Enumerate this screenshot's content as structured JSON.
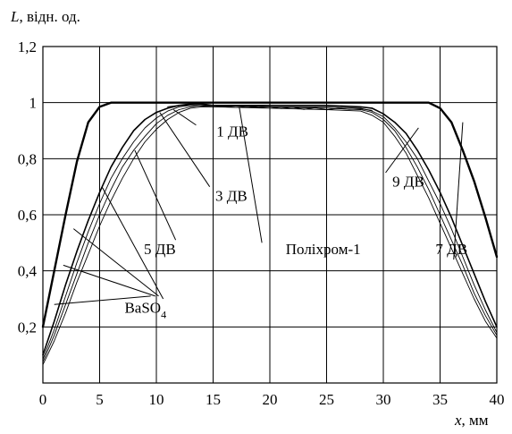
{
  "chart_data": {
    "type": "line",
    "ylabel_var": "L",
    "ylabel_rest": ", відн. од.",
    "xlabel_var": "x",
    "xlabel_rest": ", мм",
    "xlim": [
      0,
      40
    ],
    "ylim": [
      0,
      1.2
    ],
    "xticks": [
      0,
      5,
      10,
      15,
      20,
      25,
      30,
      35,
      40
    ],
    "xtick_labels": [
      "0",
      "5",
      "10",
      "15",
      "20",
      "25",
      "30",
      "35",
      "40"
    ],
    "yticks": [
      0.2,
      0.4,
      0.6,
      0.8,
      1,
      1.2
    ],
    "ytick_labels": [
      "0,2",
      "0,4",
      "0,6",
      "0,8",
      "1",
      "1,2"
    ],
    "grid": true,
    "series": [
      {
        "style": "thick",
        "x": [
          0,
          1,
          2,
          3,
          4,
          5,
          6,
          7,
          10,
          15,
          20,
          25,
          30,
          33,
          34,
          35,
          36,
          37,
          38,
          39,
          40
        ],
        "y": [
          0.2,
          0.4,
          0.6,
          0.79,
          0.93,
          0.985,
          1.0,
          1.0,
          1.0,
          1.0,
          1.0,
          1.0,
          1.0,
          1.0,
          1.0,
          0.98,
          0.93,
          0.83,
          0.72,
          0.59,
          0.45
        ]
      },
      {
        "style": "medium",
        "x": [
          0,
          1,
          2,
          3,
          4,
          5,
          6,
          7,
          8,
          9,
          10,
          11,
          12,
          13,
          14,
          15,
          20,
          25,
          28,
          29,
          30,
          31,
          32,
          33,
          34,
          35,
          36,
          37,
          38,
          39,
          40
        ],
        "y": [
          0.1,
          0.22,
          0.35,
          0.47,
          0.58,
          0.68,
          0.77,
          0.84,
          0.9,
          0.94,
          0.965,
          0.98,
          0.99,
          0.995,
          0.995,
          0.99,
          0.99,
          0.99,
          0.985,
          0.98,
          0.96,
          0.93,
          0.89,
          0.83,
          0.76,
          0.68,
          0.59,
          0.49,
          0.39,
          0.29,
          0.2
        ]
      },
      {
        "style": "thin",
        "x": [
          0,
          1,
          2,
          3,
          4,
          5,
          6,
          7,
          8,
          9,
          10,
          11,
          12,
          13,
          14,
          15,
          20,
          25,
          28,
          29,
          30,
          31,
          32,
          33,
          34,
          35,
          36,
          37,
          38,
          39,
          40
        ],
        "y": [
          0.085,
          0.19,
          0.31,
          0.43,
          0.54,
          0.64,
          0.73,
          0.8,
          0.86,
          0.91,
          0.945,
          0.97,
          0.985,
          0.99,
          0.99,
          0.99,
          0.985,
          0.985,
          0.98,
          0.97,
          0.95,
          0.91,
          0.86,
          0.8,
          0.72,
          0.64,
          0.55,
          0.45,
          0.35,
          0.26,
          0.18
        ]
      },
      {
        "style": "thin",
        "x": [
          0,
          1,
          2,
          3,
          4,
          5,
          6,
          7,
          8,
          9,
          10,
          11,
          12,
          13,
          14,
          15,
          20,
          25,
          28,
          29,
          30,
          31,
          32,
          33,
          34,
          35,
          36,
          37,
          38,
          39,
          40
        ],
        "y": [
          0.075,
          0.17,
          0.28,
          0.39,
          0.5,
          0.6,
          0.69,
          0.77,
          0.83,
          0.88,
          0.925,
          0.955,
          0.975,
          0.985,
          0.99,
          0.99,
          0.985,
          0.98,
          0.975,
          0.965,
          0.94,
          0.9,
          0.84,
          0.77,
          0.69,
          0.6,
          0.51,
          0.42,
          0.32,
          0.24,
          0.17
        ]
      },
      {
        "style": "thin",
        "x": [
          0,
          1,
          2,
          3,
          4,
          5,
          6,
          7,
          8,
          9,
          10,
          11,
          12,
          13,
          14,
          15,
          20,
          25,
          28,
          29,
          30,
          31,
          32,
          33,
          34,
          35,
          36,
          37,
          38,
          39,
          40
        ],
        "y": [
          0.065,
          0.15,
          0.25,
          0.36,
          0.46,
          0.56,
          0.65,
          0.73,
          0.8,
          0.86,
          0.905,
          0.94,
          0.965,
          0.98,
          0.985,
          0.985,
          0.98,
          0.975,
          0.97,
          0.955,
          0.93,
          0.88,
          0.82,
          0.74,
          0.66,
          0.57,
          0.48,
          0.39,
          0.3,
          0.22,
          0.16
        ]
      },
      {
        "style": "wavy",
        "x": [
          11,
          12,
          13,
          14,
          15,
          16,
          17,
          18,
          19,
          20,
          21,
          22,
          23,
          24,
          25,
          26,
          27,
          28,
          29
        ],
        "y": [
          0.985,
          0.99,
          0.99,
          0.988,
          0.985,
          0.987,
          0.983,
          0.986,
          0.982,
          0.985,
          0.979,
          0.984,
          0.976,
          0.982,
          0.974,
          0.98,
          0.976,
          0.978,
          0.972
        ]
      }
    ],
    "annotations": [
      {
        "text": "1 ДВ",
        "sub": "",
        "tx": 15.3,
        "ty": 0.88,
        "leaders": [
          [
            13.5,
            0.92,
            11.5,
            0.975
          ]
        ]
      },
      {
        "text": "3 ДВ",
        "sub": "",
        "tx": 15.2,
        "ty": 0.65,
        "leaders": [
          [
            14.7,
            0.7,
            10.3,
            0.965
          ]
        ]
      },
      {
        "text": "5 ДВ",
        "sub": "",
        "tx": 8.9,
        "ty": 0.46,
        "leaders": [
          [
            11.7,
            0.51,
            8.1,
            0.83
          ]
        ]
      },
      {
        "text": "Поліхром-1",
        "sub": "",
        "tx": 21.4,
        "ty": 0.46,
        "leaders": [
          [
            19.3,
            0.5,
            17.3,
            0.985
          ]
        ]
      },
      {
        "text": "9 ДВ",
        "sub": "",
        "tx": 30.8,
        "ty": 0.7,
        "leaders": [
          [
            30.2,
            0.75,
            33.1,
            0.91
          ]
        ]
      },
      {
        "text": "7 ДВ",
        "sub": "",
        "tx": 34.6,
        "ty": 0.46,
        "leaders": [
          [
            36.2,
            0.44,
            37.0,
            0.93
          ]
        ]
      },
      {
        "text": "BaSO",
        "sub": "4",
        "tx": 7.2,
        "ty": 0.25,
        "leaders": [
          [
            10.6,
            0.3,
            5.2,
            0.7
          ],
          [
            10.2,
            0.31,
            2.7,
            0.55
          ],
          [
            9.9,
            0.31,
            1.8,
            0.42
          ],
          [
            9.5,
            0.31,
            1.0,
            0.28
          ]
        ]
      }
    ]
  }
}
